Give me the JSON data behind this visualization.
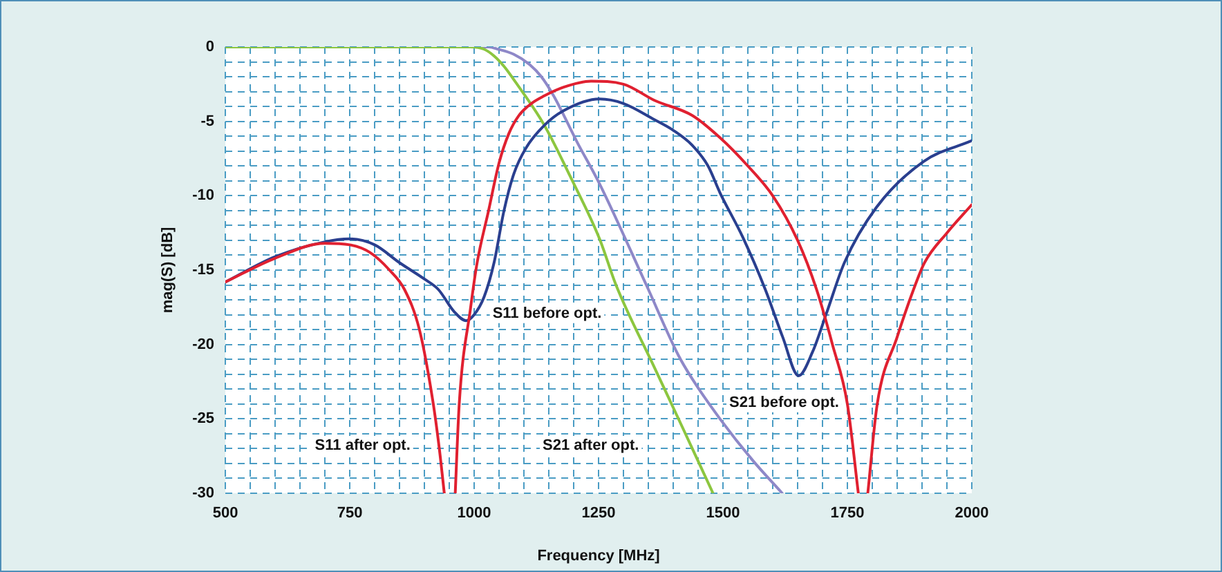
{
  "chart_data": {
    "type": "line",
    "xlabel": "Frequency [MHz]",
    "ylabel": "mag(S) [dB]",
    "xlim": [
      500,
      2000
    ],
    "ylim": [
      -30,
      0
    ],
    "xticks": [
      500,
      {
        "value": 550,
        "label": null
      },
      {
        "value": 600,
        "label": null
      },
      {
        "value": 650,
        "label": null
      },
      {
        "value": 700,
        "label": null
      },
      750,
      {
        "value": 800,
        "label": null
      },
      {
        "value": 850,
        "label": null
      },
      {
        "value": 900,
        "label": null
      },
      {
        "value": 950,
        "label": null
      },
      1000,
      {
        "value": 1050,
        "label": null
      },
      {
        "value": 1100,
        "label": null
      },
      {
        "value": 1150,
        "label": null
      },
      {
        "value": 1200,
        "label": null
      },
      1250,
      {
        "value": 1300,
        "label": null
      },
      {
        "value": 1350,
        "label": null
      },
      {
        "value": 1400,
        "label": null
      },
      {
        "value": 1450,
        "label": null
      },
      1500,
      {
        "value": 1550,
        "label": null
      },
      {
        "value": 1600,
        "label": null
      },
      {
        "value": 1650,
        "label": null
      },
      {
        "value": 1700,
        "label": null
      },
      1750,
      {
        "value": 1800,
        "label": null
      },
      {
        "value": 1850,
        "label": null
      },
      {
        "value": 1900,
        "label": null
      },
      {
        "value": 1950,
        "label": null
      },
      2000
    ],
    "yticks": [
      -30,
      {
        "value": -29,
        "label": null
      },
      {
        "value": -28,
        "label": null
      },
      {
        "value": -27,
        "label": null
      },
      {
        "value": -26,
        "label": null
      },
      -25,
      {
        "value": -24,
        "label": null
      },
      {
        "value": -23,
        "label": null
      },
      {
        "value": -22,
        "label": null
      },
      {
        "value": -21,
        "label": null
      },
      -20,
      {
        "value": -19,
        "label": null
      },
      {
        "value": -18,
        "label": null
      },
      {
        "value": -17,
        "label": null
      },
      {
        "value": -16,
        "label": null
      },
      -15,
      {
        "value": -14,
        "label": null
      },
      {
        "value": -13,
        "label": null
      },
      {
        "value": -12,
        "label": null
      },
      {
        "value": -11,
        "label": null
      },
      -10,
      {
        "value": -9,
        "label": null
      },
      {
        "value": -8,
        "label": null
      },
      {
        "value": -7,
        "label": null
      },
      {
        "value": -6,
        "label": null
      },
      -5,
      {
        "value": -4,
        "label": null
      },
      {
        "value": -3,
        "label": null
      },
      {
        "value": -2,
        "label": null
      },
      {
        "value": -1,
        "label": null
      },
      0
    ],
    "grid": true,
    "legend": false,
    "marker": "none",
    "line_style": "solid",
    "series": [
      {
        "color": "#e02030",
        "x": [
          500,
          600,
          700,
          750,
          790,
          830,
          860,
          890,
          917,
          930,
          940,
          null,
          962,
          970,
          993,
          1006,
          1029,
          1050,
          1070,
          1090,
          1115,
          1140,
          1180,
          1235,
          1300,
          1363,
          1438,
          1494,
          1550,
          1600,
          1650,
          1688,
          1720,
          1750,
          1772,
          null,
          1791,
          1810,
          1850,
          1883,
          1905,
          1950,
          2000
        ],
        "values": [
          -15.8,
          -14.2,
          -13.2,
          -13.3,
          -13.8,
          -15,
          -16.3,
          -19,
          -23.8,
          -27,
          -30,
          null,
          -30,
          -24,
          -17.5,
          -14.5,
          -11,
          -7.8,
          -5.8,
          -4.6,
          -3.8,
          -3.3,
          -2.7,
          -2.3,
          -2.5,
          -3.6,
          -4.6,
          -6.1,
          -8,
          -10,
          -13,
          -16.3,
          -20,
          -24,
          -30,
          null,
          -30,
          -24,
          -19.5,
          -16.3,
          -14.5,
          -12.5,
          -10.6
        ]
      },
      {
        "color": "#2a3f8f",
        "x": [
          500,
          600,
          700,
          750,
          800,
          850,
          900,
          928,
          960,
          984,
          1000,
          1020,
          1040,
          1060,
          1080,
          1104,
          1140,
          1179,
          1252,
          1300,
          1363,
          1400,
          1438,
          1470,
          1494,
          1540,
          1585,
          1620,
          1652,
          1680,
          1708,
          1744,
          1808,
          1903,
          2000
        ],
        "values": [
          -15.8,
          -14.1,
          -13.1,
          -12.9,
          -13.3,
          -14.5,
          -15.6,
          -16.3,
          -17.8,
          -18.4,
          -18,
          -16.8,
          -14.5,
          -11,
          -8.5,
          -6.8,
          -5.3,
          -4.3,
          -3.5,
          -3.8,
          -4.9,
          -5.6,
          -6.6,
          -8,
          -9.8,
          -12.8,
          -16.3,
          -19.5,
          -22.1,
          -20.5,
          -17.9,
          -14.5,
          -10.8,
          -7.7,
          -6.3
        ]
      },
      {
        "color": "#8cc63f",
        "x": [
          500,
          993,
          1020,
          1040,
          1060,
          1084,
          1140,
          1196,
          1252,
          1285,
          1363,
          1419,
          1480
        ],
        "values": [
          0,
          0,
          -0.15,
          -0.6,
          -1.3,
          -2.4,
          -5.2,
          -8.9,
          -12.9,
          -16,
          -21.6,
          -25.6,
          -30
        ]
      },
      {
        "color": "#8e88c8",
        "x": [
          500,
          1030,
          1048,
          1080,
          1112,
          1135,
          1160,
          1207,
          1252,
          1346,
          1410,
          1438,
          1494,
          1560,
          1619
        ],
        "values": [
          0,
          0,
          -0.15,
          -0.5,
          -1.2,
          -2,
          -3.3,
          -6.4,
          -9.2,
          -16,
          -20.7,
          -22.3,
          -25,
          -27.8,
          -30
        ]
      }
    ],
    "annotations": [
      "S11 before opt.",
      "S11 after opt.",
      "S21 after opt.",
      "S21 before opt."
    ]
  }
}
